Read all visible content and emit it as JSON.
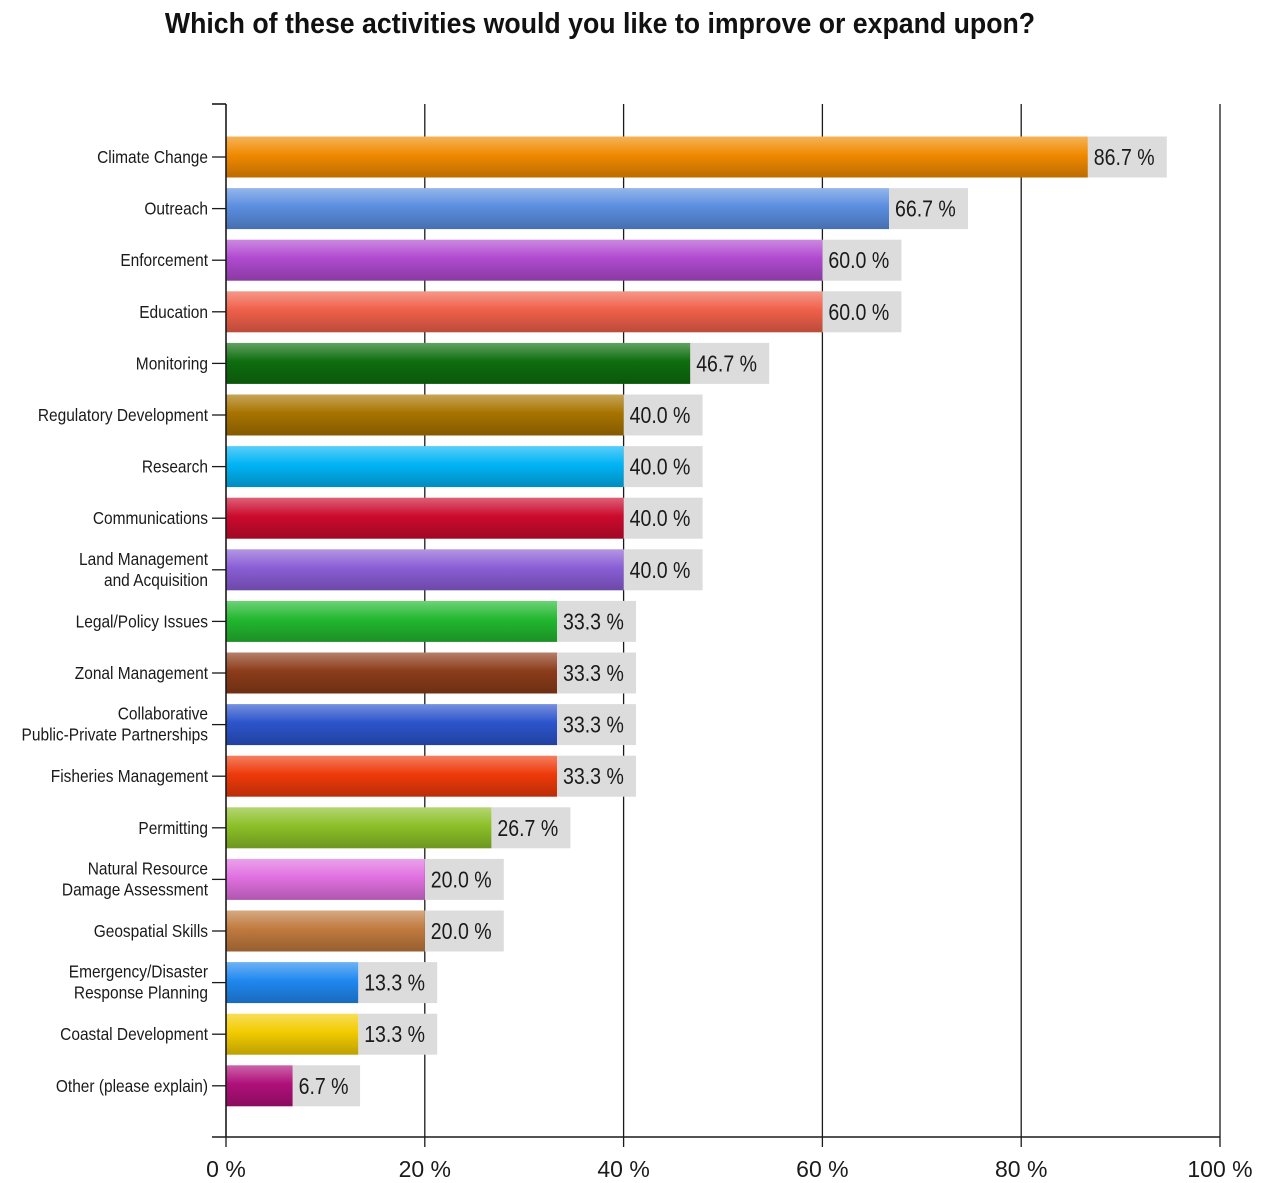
{
  "chart_data": {
    "type": "bar",
    "orientation": "horizontal",
    "title": "Which of these activities would you like to improve or expand upon?",
    "xlabel": "",
    "ylabel": "",
    "xlim": [
      0,
      100
    ],
    "x_ticks": [
      "0 %",
      "20 %",
      "40 %",
      "60 %",
      "80 %",
      "100 %"
    ],
    "grid": true,
    "value_suffix": " %",
    "categories": [
      [
        "Climate Change"
      ],
      [
        "Outreach"
      ],
      [
        "Enforcement"
      ],
      [
        "Education"
      ],
      [
        "Monitoring"
      ],
      [
        "Regulatory Development"
      ],
      [
        "Research"
      ],
      [
        "Communications"
      ],
      [
        "Land Management",
        "and Acquisition"
      ],
      [
        "Legal/Policy Issues"
      ],
      [
        "Zonal Management"
      ],
      [
        "Collaborative",
        "Public-Private Partnerships"
      ],
      [
        "Fisheries Management"
      ],
      [
        "Permitting"
      ],
      [
        "Natural Resource",
        "Damage Assessment"
      ],
      [
        "Geospatial Skills"
      ],
      [
        "Emergency/Disaster",
        "Response Planning"
      ],
      [
        "Coastal Development"
      ],
      [
        "Other (please explain)"
      ]
    ],
    "values": [
      86.7,
      66.7,
      60.0,
      60.0,
      46.7,
      40.0,
      40.0,
      40.0,
      40.0,
      33.3,
      33.3,
      33.3,
      33.3,
      26.7,
      20.0,
      20.0,
      13.3,
      13.3,
      6.7
    ],
    "colors": [
      "#f08a00",
      "#5b8ee0",
      "#b04ad0",
      "#f0604a",
      "#0e6e0e",
      "#a87400",
      "#00b4f4",
      "#cc0a2e",
      "#8a5ed6",
      "#22b830",
      "#8c3c1a",
      "#2c54cc",
      "#ee3a0a",
      "#8cc028",
      "#e070e0",
      "#c07a3e",
      "#2088f0",
      "#f2cc00",
      "#b0107a"
    ]
  }
}
